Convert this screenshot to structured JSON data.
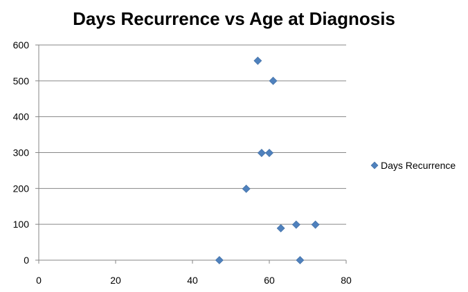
{
  "chart_data": {
    "type": "scatter",
    "title": "Days Recurrence vs Age at Diagnosis",
    "xlabel": "",
    "ylabel": "",
    "xlim": [
      0,
      80
    ],
    "ylim": [
      0,
      600
    ],
    "x_ticks": [
      0,
      20,
      40,
      60,
      80
    ],
    "y_ticks": [
      0,
      100,
      200,
      300,
      400,
      500,
      600
    ],
    "grid": {
      "horizontal": true,
      "vertical": false
    },
    "legend_position": "right",
    "series": [
      {
        "name": "Days Recurrence",
        "color": "#4f81bd",
        "marker": "diamond",
        "points": [
          {
            "x": 57,
            "y": 556
          },
          {
            "x": 61,
            "y": 500
          },
          {
            "x": 58,
            "y": 299
          },
          {
            "x": 60,
            "y": 299
          },
          {
            "x": 54,
            "y": 199
          },
          {
            "x": 63,
            "y": 89
          },
          {
            "x": 67,
            "y": 99
          },
          {
            "x": 72,
            "y": 99
          },
          {
            "x": 47,
            "y": 0
          },
          {
            "x": 68,
            "y": 0
          }
        ]
      }
    ]
  }
}
